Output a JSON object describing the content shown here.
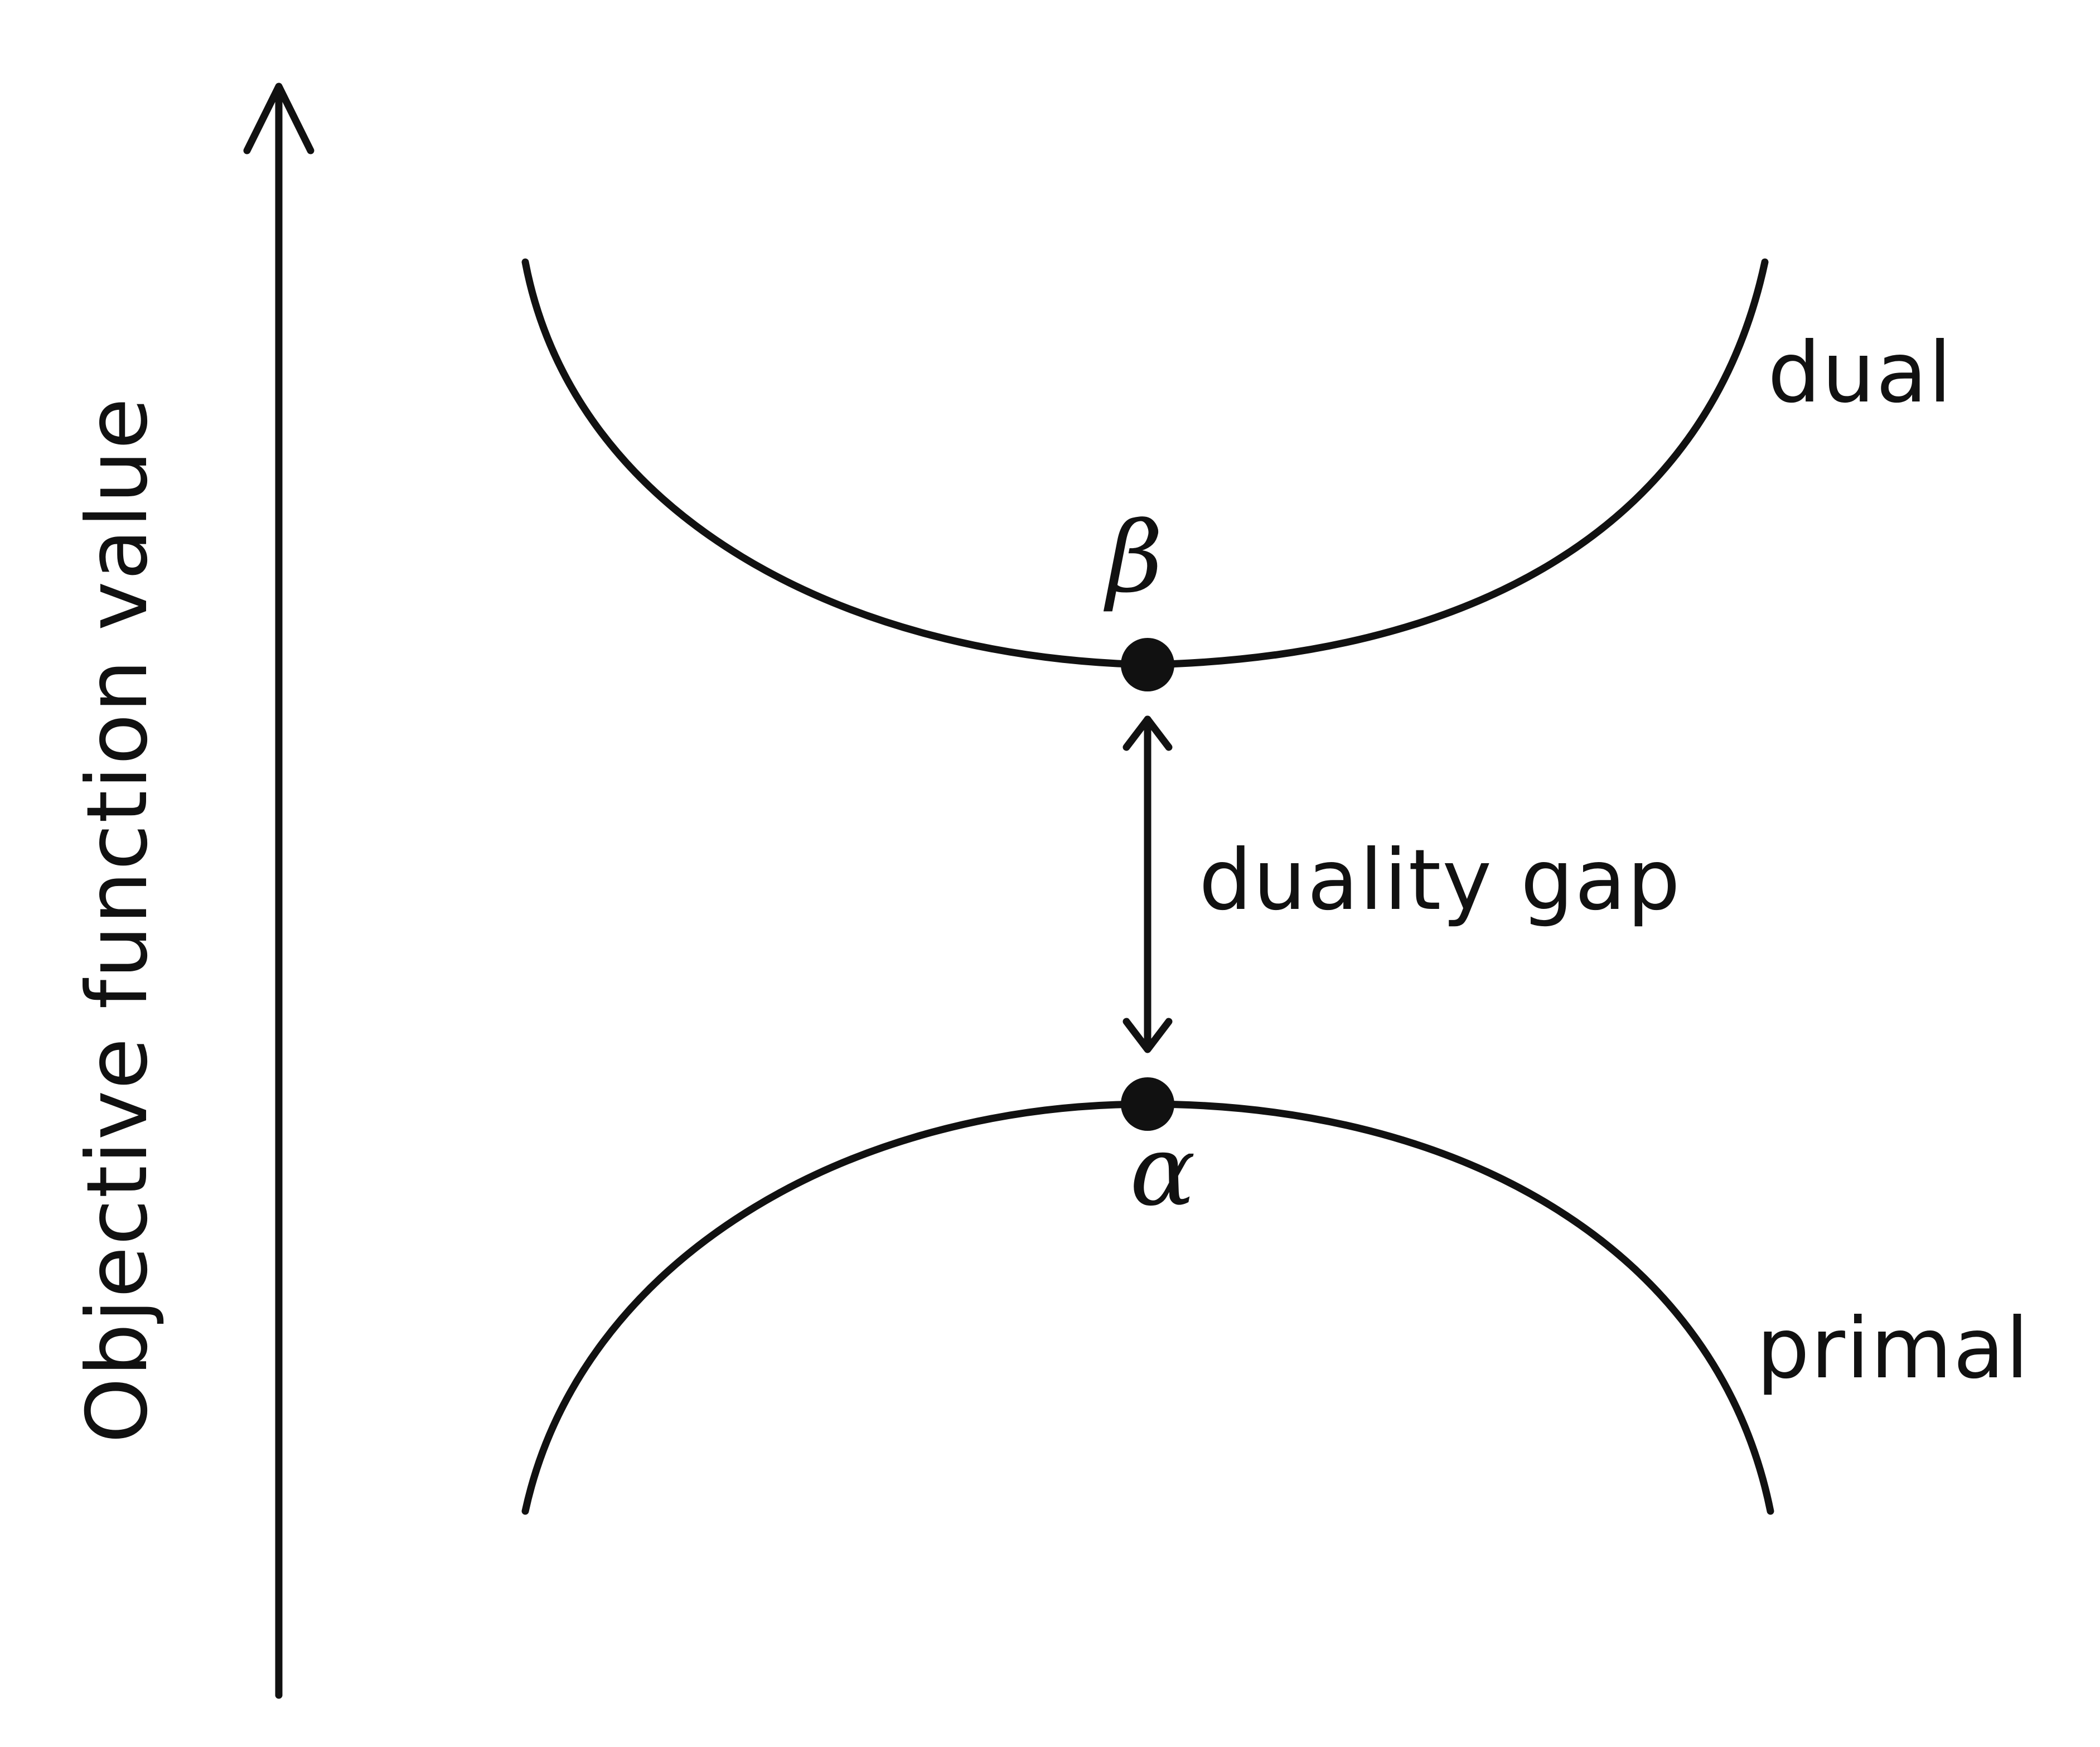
{
  "axis": {
    "label": "Objective function value"
  },
  "curves": {
    "dual": {
      "label": "dual",
      "point_label": "β"
    },
    "primal": {
      "label": "primal",
      "point_label": "α"
    }
  },
  "gap": {
    "label": "duality gap"
  },
  "colors": {
    "ink": "#111111",
    "background": "#ffffff"
  }
}
